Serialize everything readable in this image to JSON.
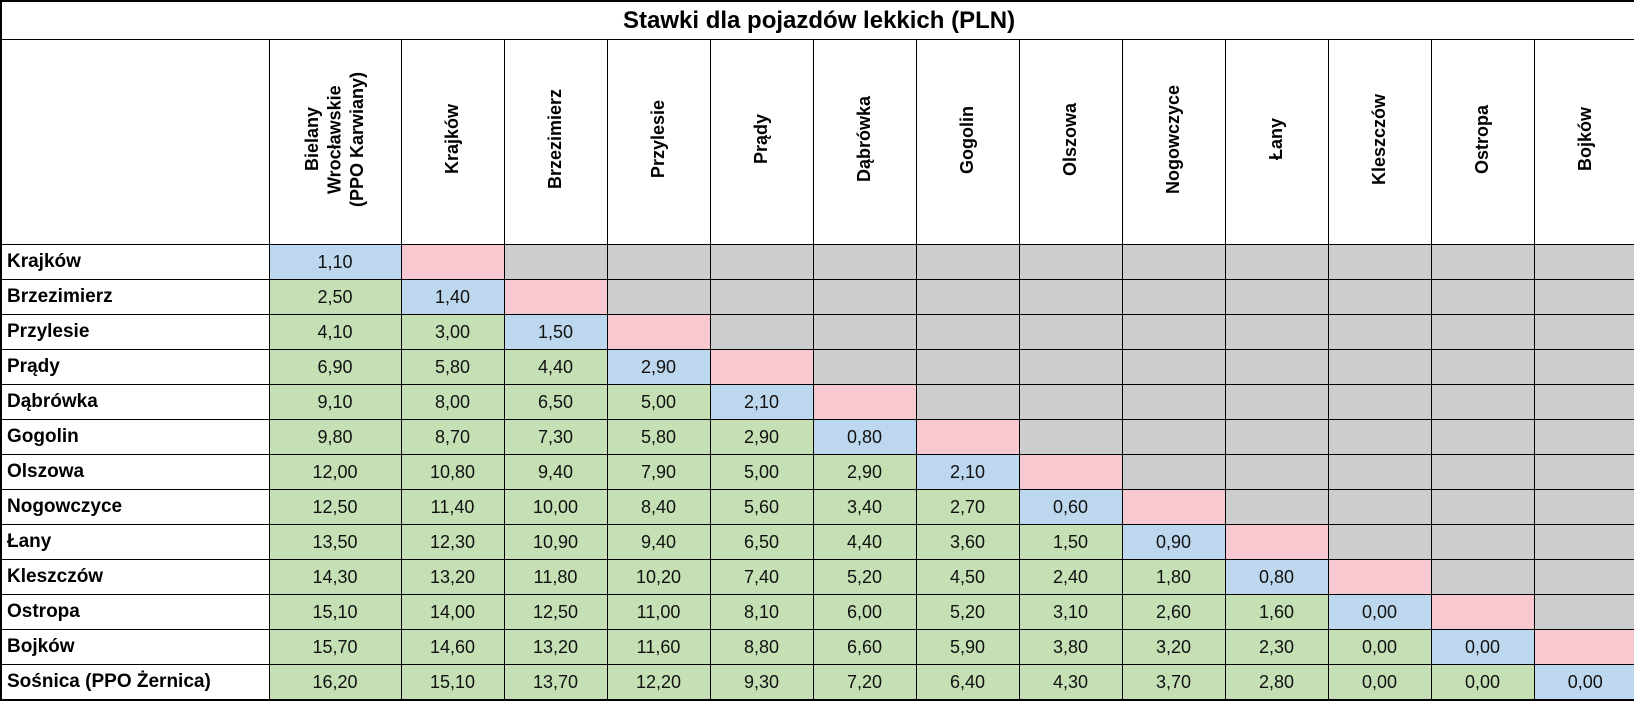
{
  "chart_data": {
    "type": "table",
    "title": "Stawki dla pojazdów lekkich (PLN)",
    "column_headers": [
      "Bielany\nWrocławskie\n(PPO Karwiany)",
      "Krajków",
      "Brzezimierz",
      "Przylesie",
      "Prądy",
      "Dąbrówka",
      "Gogolin",
      "Olszowa",
      "Nogowczyce",
      "Łany",
      "Kleszczów",
      "Ostropa",
      "Bojków"
    ],
    "rows": [
      {
        "label": "Krajków",
        "values": [
          "1,10"
        ]
      },
      {
        "label": "Brzezimierz",
        "values": [
          "2,50",
          "1,40"
        ]
      },
      {
        "label": "Przylesie",
        "values": [
          "4,10",
          "3,00",
          "1,50"
        ]
      },
      {
        "label": "Prądy",
        "values": [
          "6,90",
          "5,80",
          "4,40",
          "2,90"
        ]
      },
      {
        "label": "Dąbrówka",
        "values": [
          "9,10",
          "8,00",
          "6,50",
          "5,00",
          "2,10"
        ]
      },
      {
        "label": "Gogolin",
        "values": [
          "9,80",
          "8,70",
          "7,30",
          "5,80",
          "2,90",
          "0,80"
        ]
      },
      {
        "label": "Olszowa",
        "values": [
          "12,00",
          "10,80",
          "9,40",
          "7,90",
          "5,00",
          "2,90",
          "2,10"
        ]
      },
      {
        "label": "Nogowczyce",
        "values": [
          "12,50",
          "11,40",
          "10,00",
          "8,40",
          "5,60",
          "3,40",
          "2,70",
          "0,60"
        ]
      },
      {
        "label": "Łany",
        "values": [
          "13,50",
          "12,30",
          "10,90",
          "9,40",
          "6,50",
          "4,40",
          "3,60",
          "1,50",
          "0,90"
        ]
      },
      {
        "label": "Kleszczów",
        "values": [
          "14,30",
          "13,20",
          "11,80",
          "10,20",
          "7,40",
          "5,20",
          "4,50",
          "2,40",
          "1,80",
          "0,80"
        ]
      },
      {
        "label": "Ostropa",
        "values": [
          "15,10",
          "14,00",
          "12,50",
          "11,00",
          "8,10",
          "6,00",
          "5,20",
          "3,10",
          "2,60",
          "1,60",
          "0,00"
        ]
      },
      {
        "label": "Bojków",
        "values": [
          "15,70",
          "14,60",
          "13,20",
          "11,60",
          "8,80",
          "6,60",
          "5,90",
          "3,80",
          "3,20",
          "2,30",
          "0,00",
          "0,00"
        ]
      },
      {
        "label": "Sośnica (PPO Żernica)",
        "values": [
          "16,20",
          "15,10",
          "13,70",
          "12,20",
          "9,30",
          "7,20",
          "6,40",
          "4,30",
          "3,70",
          "2,80",
          "0,00",
          "0,00",
          "0,00"
        ]
      }
    ],
    "colors": {
      "rate_cell": "#c5e0b4",
      "adjacent_cell": "#bdd7ee",
      "diagonal_cell": "#f8c8d1",
      "empty_cell": "#cdcdcd"
    }
  }
}
